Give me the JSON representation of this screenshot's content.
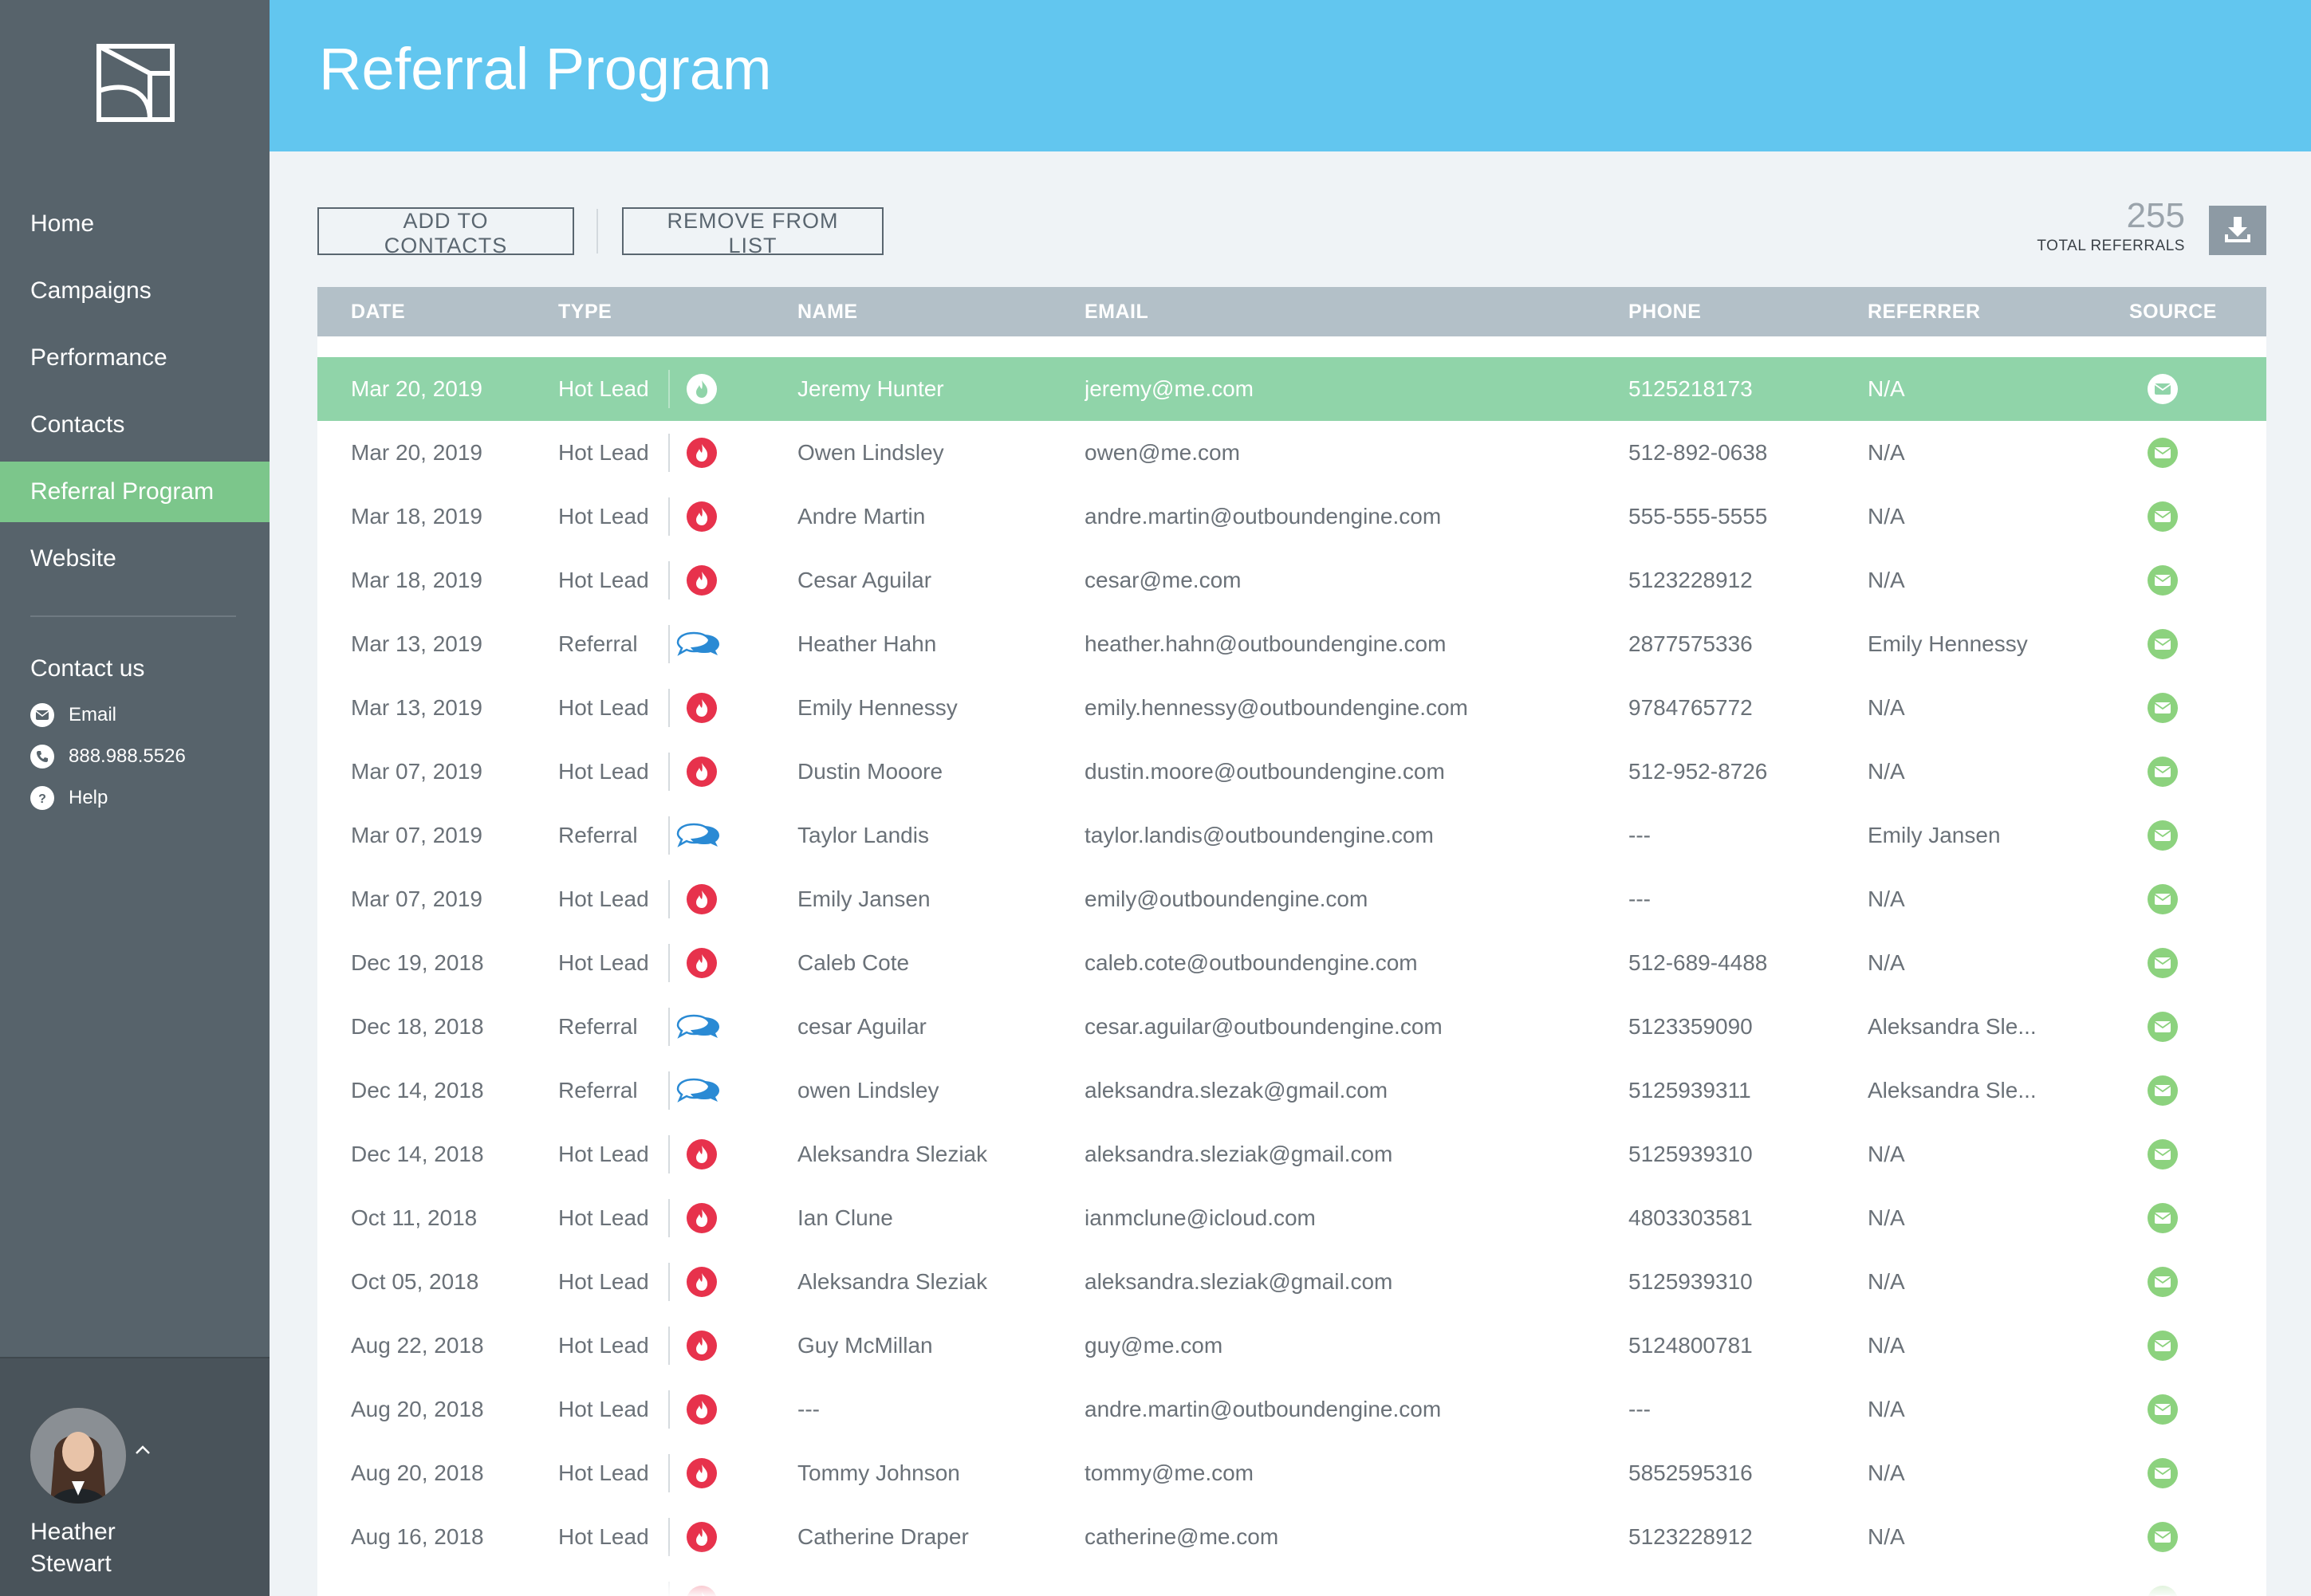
{
  "header": {
    "title": "Referral Program"
  },
  "sidebar": {
    "nav": [
      {
        "label": "Home"
      },
      {
        "label": "Campaigns"
      },
      {
        "label": "Performance"
      },
      {
        "label": "Contacts"
      },
      {
        "label": "Referral Program",
        "active": true
      },
      {
        "label": "Website"
      }
    ],
    "contact": {
      "heading": "Contact us",
      "email_label": "Email",
      "phone": "888.988.5526",
      "help_label": "Help"
    },
    "user": {
      "name": "Heather Stewart"
    }
  },
  "toolbar": {
    "add_label": "ADD TO CONTACTS",
    "remove_label": "REMOVE FROM LIST",
    "total_count": "255",
    "total_label": "TOTAL REFERRALS"
  },
  "table": {
    "columns": [
      "DATE",
      "TYPE",
      "NAME",
      "EMAIL",
      "PHONE",
      "REFERRER",
      "SOURCE"
    ],
    "rows": [
      {
        "date": "Mar 20, 2019",
        "type": "Hot Lead",
        "icon": "flame-icon",
        "name": "Jeremy Hunter",
        "email": "jeremy@me.com",
        "phone": "5125218173",
        "referrer": "N/A",
        "source": "email-icon",
        "selected": true
      },
      {
        "date": "Mar 20, 2019",
        "type": "Hot Lead",
        "icon": "flame-icon",
        "name": "Owen Lindsley",
        "email": "owen@me.com",
        "phone": "512-892-0638",
        "referrer": "N/A",
        "source": "email-icon"
      },
      {
        "date": "Mar 18, 2019",
        "type": "Hot Lead",
        "icon": "flame-icon",
        "name": "Andre Martin",
        "email": "andre.martin@outboundengine.com",
        "phone": "555-555-5555",
        "referrer": "N/A",
        "source": "email-icon"
      },
      {
        "date": "Mar 18, 2019",
        "type": "Hot Lead",
        "icon": "flame-icon",
        "name": "Cesar Aguilar",
        "email": "cesar@me.com",
        "phone": "5123228912",
        "referrer": "N/A",
        "source": "email-icon"
      },
      {
        "date": "Mar 13, 2019",
        "type": "Referral",
        "icon": "chat-bubbles-icon",
        "name": "Heather Hahn",
        "email": "heather.hahn@outboundengine.com",
        "phone": "2877575336",
        "referrer": "Emily Hennessy",
        "source": "email-icon"
      },
      {
        "date": "Mar 13, 2019",
        "type": "Hot Lead",
        "icon": "flame-icon",
        "name": "Emily Hennessy",
        "email": "emily.hennessy@outboundengine.com",
        "phone": "9784765772",
        "referrer": "N/A",
        "source": "email-icon"
      },
      {
        "date": "Mar 07, 2019",
        "type": "Hot Lead",
        "icon": "flame-icon",
        "name": "Dustin Mooore",
        "email": "dustin.moore@outboundengine.com",
        "phone": "512-952-8726",
        "referrer": "N/A",
        "source": "email-icon"
      },
      {
        "date": "Mar 07, 2019",
        "type": "Referral",
        "icon": "chat-bubbles-icon",
        "name": "Taylor Landis",
        "email": "taylor.landis@outboundengine.com",
        "phone": "---",
        "referrer": "Emily Jansen",
        "source": "email-icon"
      },
      {
        "date": "Mar 07, 2019",
        "type": "Hot Lead",
        "icon": "flame-icon",
        "name": "Emily Jansen",
        "email": "emily@outboundengine.com",
        "phone": "---",
        "referrer": "N/A",
        "source": "email-icon"
      },
      {
        "date": "Dec 19, 2018",
        "type": "Hot Lead",
        "icon": "flame-icon",
        "name": "Caleb Cote",
        "email": "caleb.cote@outboundengine.com",
        "phone": "512-689-4488",
        "referrer": "N/A",
        "source": "email-icon"
      },
      {
        "date": "Dec 18, 2018",
        "type": "Referral",
        "icon": "chat-bubbles-icon",
        "name": "cesar Aguilar",
        "email": "cesar.aguilar@outboundengine.com",
        "phone": "5123359090",
        "referrer": "Aleksandra Sle...",
        "source": "email-icon"
      },
      {
        "date": "Dec 14, 2018",
        "type": "Referral",
        "icon": "chat-bubbles-icon",
        "name": "owen Lindsley",
        "email": "aleksandra.slezak@gmail.com",
        "phone": "5125939311",
        "referrer": "Aleksandra Sle...",
        "source": "email-icon"
      },
      {
        "date": "Dec 14, 2018",
        "type": "Hot Lead",
        "icon": "flame-icon",
        "name": "Aleksandra Sleziak",
        "email": "aleksandra.sleziak@gmail.com",
        "phone": "5125939310",
        "referrer": "N/A",
        "source": "email-icon"
      },
      {
        "date": "Oct 11, 2018",
        "type": "Hot Lead",
        "icon": "flame-icon",
        "name": "Ian Clune",
        "email": "ianmclune@icloud.com",
        "phone": "4803303581",
        "referrer": "N/A",
        "source": "email-icon"
      },
      {
        "date": "Oct 05, 2018",
        "type": "Hot Lead",
        "icon": "flame-icon",
        "name": "Aleksandra Sleziak",
        "email": "aleksandra.sleziak@gmail.com",
        "phone": "5125939310",
        "referrer": "N/A",
        "source": "email-icon"
      },
      {
        "date": "Aug 22, 2018",
        "type": "Hot Lead",
        "icon": "flame-icon",
        "name": "Guy McMillan",
        "email": "guy@me.com",
        "phone": "5124800781",
        "referrer": "N/A",
        "source": "email-icon"
      },
      {
        "date": "Aug 20, 2018",
        "type": "Hot Lead",
        "icon": "flame-icon",
        "name": "---",
        "email": "andre.martin@outboundengine.com",
        "phone": "---",
        "referrer": "N/A",
        "source": "email-icon"
      },
      {
        "date": "Aug 20, 2018",
        "type": "Hot Lead",
        "icon": "flame-icon",
        "name": "Tommy Johnson",
        "email": "tommy@me.com",
        "phone": "5852595316",
        "referrer": "N/A",
        "source": "email-icon"
      },
      {
        "date": "Aug 16, 2018",
        "type": "Hot Lead",
        "icon": "flame-icon",
        "name": "Catherine Draper",
        "email": "catherine@me.com",
        "phone": "5123228912",
        "referrer": "N/A",
        "source": "email-icon"
      },
      {
        "date": "",
        "type": "",
        "icon": "flame-icon",
        "name": "",
        "email": "",
        "phone": "",
        "referrer": "",
        "source": "email-icon"
      }
    ]
  },
  "colors": {
    "header_bg": "#62c6ef",
    "sidebar_bg": "#57636b",
    "active_nav": "#7cc68b",
    "selected_row": "#90d4a9",
    "hot_lead": "#e7324c",
    "referral": "#2a8ad4",
    "source_icon": "#8cd27e"
  }
}
